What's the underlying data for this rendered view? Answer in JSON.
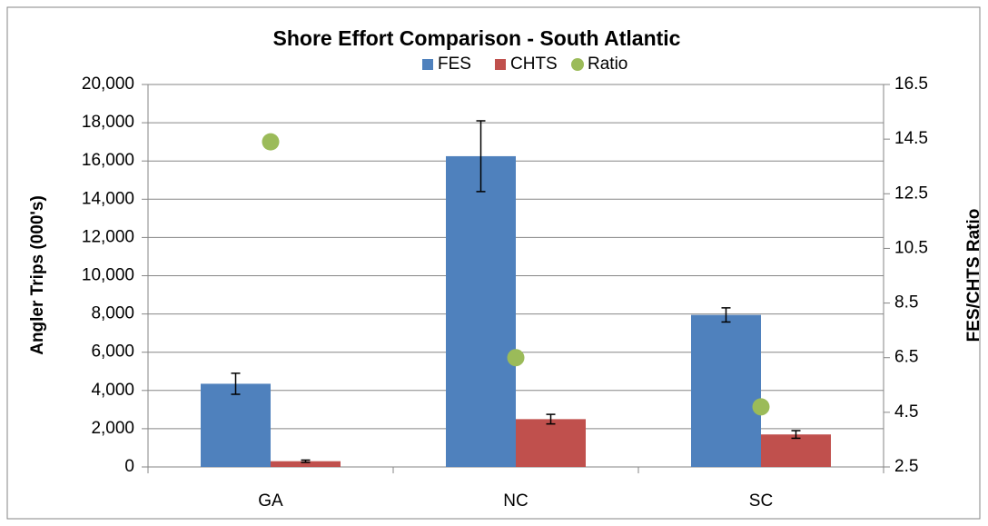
{
  "chart_data": {
    "type": "bar",
    "title": "Shore Effort Comparison -  South Atlantic",
    "y_label": "Angler Trips (000's)",
    "y2_label": "FES/CHTS Ratio",
    "categories": [
      "GA",
      "NC",
      "SC"
    ],
    "series": [
      {
        "name": "FES",
        "color": "#4f81bd",
        "values": [
          4350,
          16250,
          7950
        ],
        "errors": [
          550,
          1850,
          370
        ]
      },
      {
        "name": "CHTS",
        "color": "#c0504d",
        "values": [
          300,
          2500,
          1700
        ],
        "errors": [
          60,
          250,
          200
        ]
      },
      {
        "name": "Ratio",
        "color": "#9bbb59",
        "type": "scatter",
        "axis": "y2",
        "values": [
          14.4,
          6.5,
          4.7
        ]
      }
    ],
    "ylim": [
      0,
      20000
    ],
    "yticks": [
      0,
      {
        "value": 2000,
        "label": "2,000"
      },
      {
        "value": 4000,
        "label": "4,000"
      },
      {
        "value": 6000,
        "label": "6,000"
      },
      {
        "value": 8000,
        "label": "8,000"
      },
      {
        "value": 10000,
        "label": "10,000"
      },
      {
        "value": 12000,
        "label": "12,000"
      },
      {
        "value": 14000,
        "label": "14,000"
      },
      {
        "value": 16000,
        "label": "16,000"
      },
      {
        "value": 18000,
        "label": "18,000"
      },
      {
        "value": 20000,
        "label": "20,000"
      }
    ],
    "y2lim": [
      2.5,
      16.5
    ],
    "y2ticks": [
      2.5,
      4.5,
      6.5,
      8.5,
      10.5,
      12.5,
      14.5,
      16.5
    ],
    "grid": true,
    "legend": "top"
  }
}
